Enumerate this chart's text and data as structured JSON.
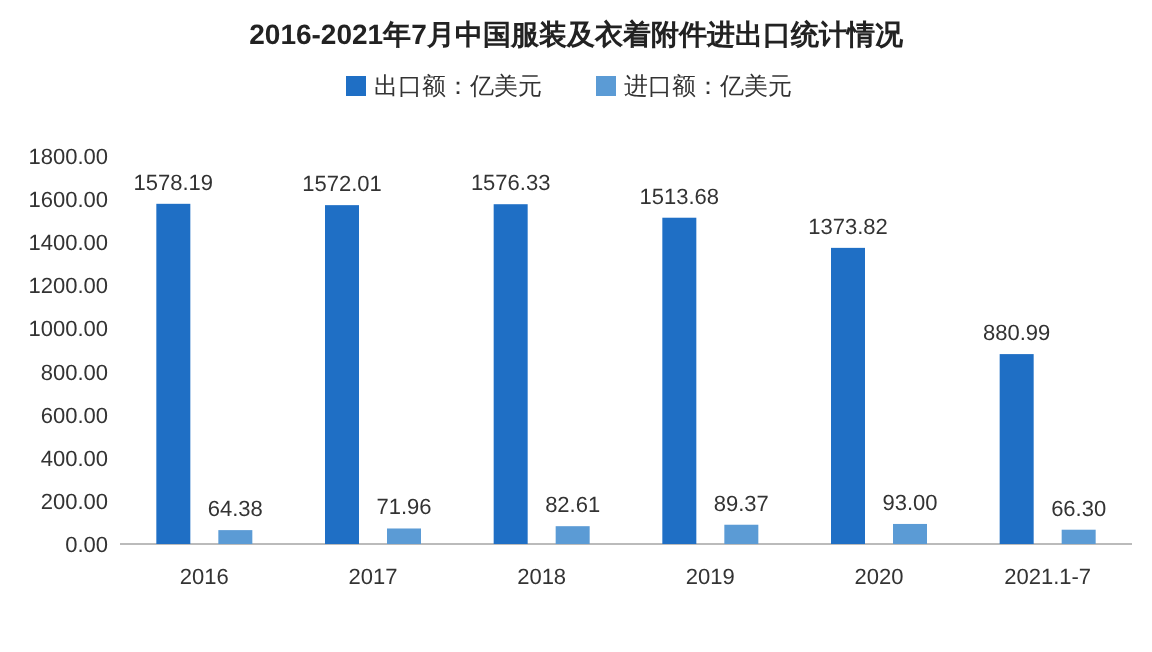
{
  "chart_data": {
    "type": "bar",
    "title": "2016-2021年7月中国服装及衣着附件进出口统计情况",
    "categories": [
      "2016",
      "2017",
      "2018",
      "2019",
      "2020",
      "2021.1-7"
    ],
    "series": [
      {
        "name": "出口额：亿美元",
        "color": "#1f6fc5",
        "values": [
          1578.19,
          1572.01,
          1576.33,
          1513.68,
          1373.82,
          880.99
        ],
        "value_labels": [
          "1578.19",
          "1572.01",
          "1576.33",
          "1513.68",
          "1373.82",
          "880.99"
        ]
      },
      {
        "name": "进口额：亿美元",
        "color": "#5b9bd5",
        "values": [
          64.38,
          71.96,
          82.61,
          89.37,
          93.0,
          66.3
        ],
        "value_labels": [
          "64.38",
          "71.96",
          "82.61",
          "89.37",
          "93.00",
          "66.30"
        ]
      }
    ],
    "ylim": [
      0,
      1800
    ],
    "yticks": [
      {
        "value": 0,
        "label": "0.00"
      },
      {
        "value": 200,
        "label": "200.00"
      },
      {
        "value": 400,
        "label": "400.00"
      },
      {
        "value": 600,
        "label": "600.00"
      },
      {
        "value": 800,
        "label": "800.00"
      },
      {
        "value": 1000,
        "label": "1000.00"
      },
      {
        "value": 1200,
        "label": "1200.00"
      },
      {
        "value": 1400,
        "label": "1400.00"
      },
      {
        "value": 1600,
        "label": "1600.00"
      },
      {
        "value": 1800,
        "label": "1800.00"
      }
    ],
    "grid": false,
    "legend": "top"
  }
}
